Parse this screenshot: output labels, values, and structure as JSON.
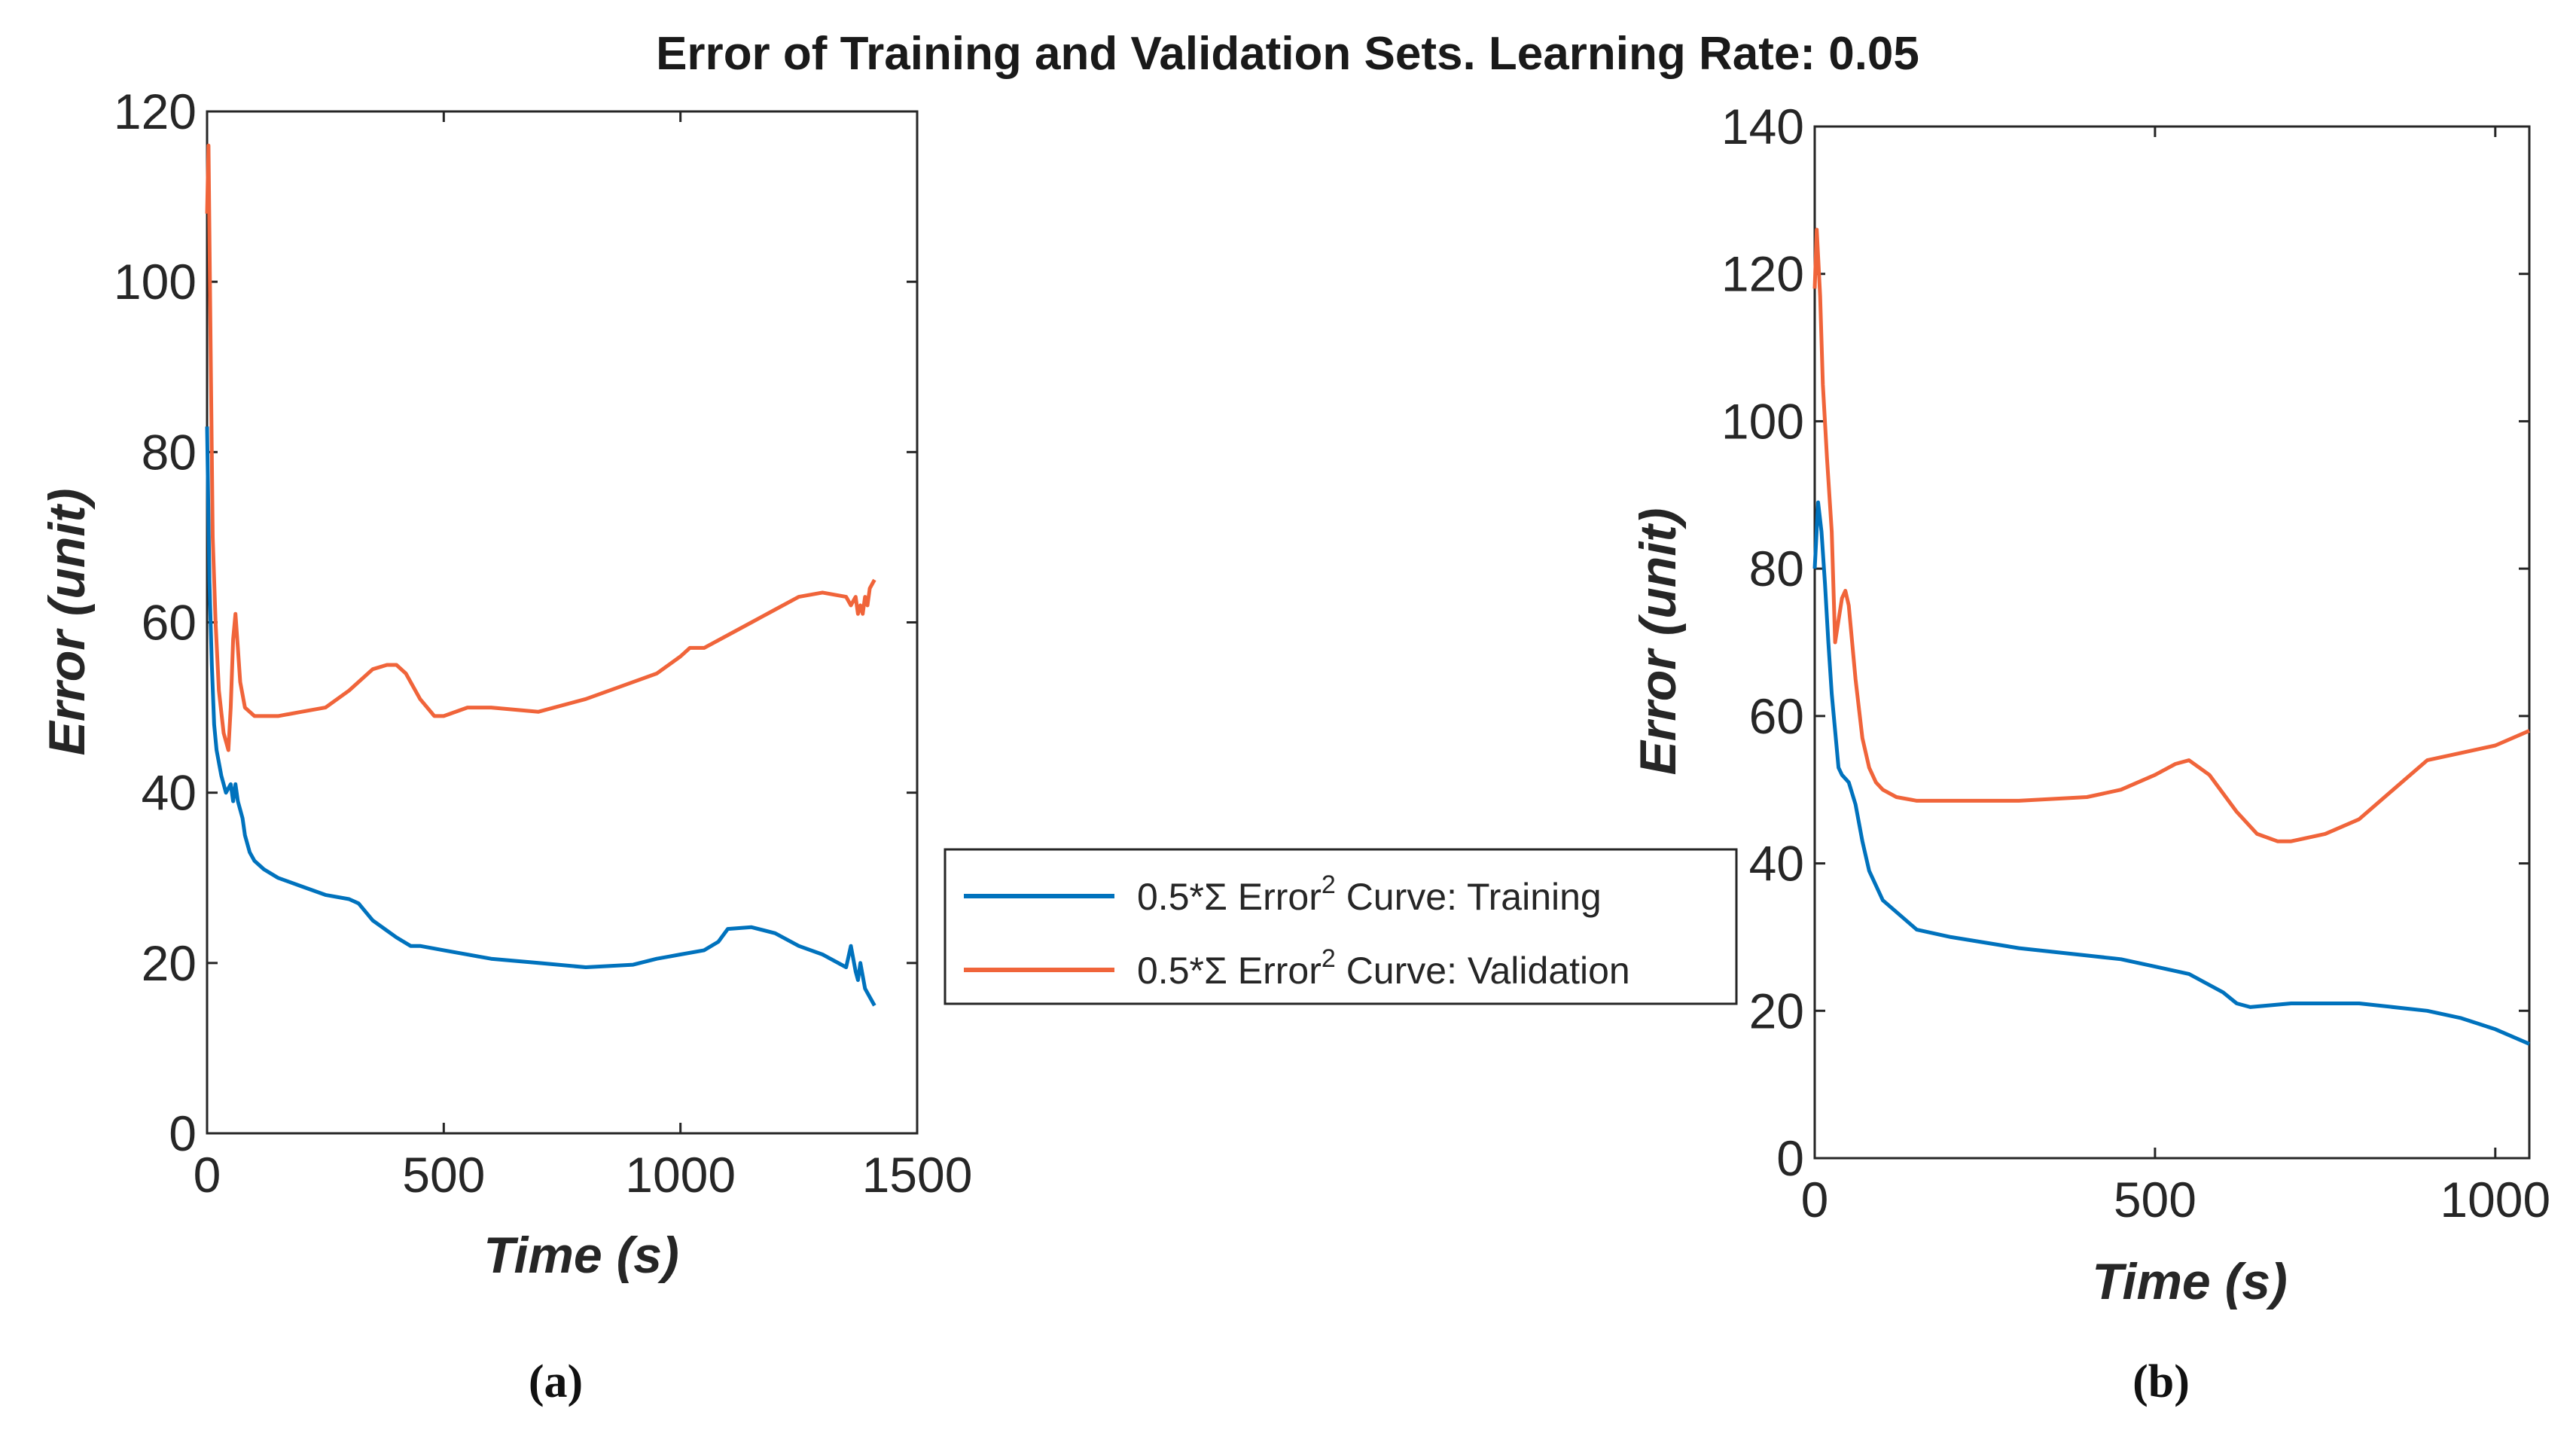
{
  "title": "Error of Training and Validation Sets. Learning Rate: 0.05",
  "colors": {
    "training": "#0072BD",
    "validation": "#F0643A",
    "axis": "#262626"
  },
  "legend": {
    "entries": [
      {
        "prefix": "0.5*Σ Error",
        "sup": "2",
        "suffix": " Curve: Training",
        "series": "training"
      },
      {
        "prefix": "0.5*Σ Error",
        "sup": "2",
        "suffix": " Curve: Validation",
        "series": "validation"
      }
    ]
  },
  "chart_data": [
    {
      "type": "line",
      "caption": "(a)",
      "xlabel": "Time (s)",
      "ylabel": "Error (unit)",
      "xlim": [
        0,
        1500
      ],
      "ylim": [
        0,
        120
      ],
      "xticks": [
        0,
        500,
        1000,
        1500
      ],
      "yticks": [
        0,
        20,
        40,
        60,
        80,
        100,
        120
      ],
      "series": [
        {
          "name": "0.5*Σ Error2 Curve: Training",
          "color": "training",
          "x": [
            0,
            5,
            10,
            15,
            20,
            30,
            40,
            50,
            55,
            60,
            65,
            70,
            75,
            80,
            90,
            100,
            120,
            150,
            200,
            250,
            300,
            320,
            350,
            400,
            430,
            450,
            500,
            600,
            700,
            800,
            900,
            950,
            1000,
            1050,
            1080,
            1100,
            1150,
            1200,
            1250,
            1300,
            1350,
            1360,
            1370,
            1375,
            1380,
            1385,
            1390,
            1400,
            1410
          ],
          "values": [
            83,
            65,
            55,
            48,
            45,
            42,
            40,
            41,
            39,
            41,
            39,
            38,
            37,
            35,
            33,
            32,
            31,
            30,
            29,
            28,
            27.5,
            27,
            25,
            23,
            22,
            22,
            21.5,
            20.5,
            20,
            19.5,
            19.8,
            20.5,
            21,
            21.5,
            22.5,
            24,
            24.2,
            23.5,
            22,
            21,
            19.5,
            22,
            19,
            18,
            20,
            18.5,
            17,
            16,
            15
          ]
        },
        {
          "name": "0.5*Σ Error2 Curve: Validation",
          "color": "validation",
          "x": [
            0,
            3,
            8,
            12,
            18,
            25,
            35,
            45,
            50,
            55,
            60,
            65,
            70,
            80,
            90,
            100,
            120,
            150,
            200,
            250,
            300,
            350,
            380,
            400,
            420,
            450,
            480,
            500,
            550,
            600,
            700,
            800,
            900,
            950,
            1000,
            1020,
            1050,
            1100,
            1150,
            1200,
            1250,
            1300,
            1350,
            1360,
            1370,
            1375,
            1380,
            1385,
            1390,
            1395,
            1400,
            1410
          ],
          "values": [
            108,
            116,
            90,
            70,
            60,
            52,
            47,
            45,
            50,
            58,
            61,
            57,
            53,
            50,
            49.5,
            49,
            49,
            49,
            49.5,
            50,
            52,
            54.5,
            55,
            55,
            54,
            51,
            49,
            49,
            50,
            50,
            49.5,
            51,
            53,
            54,
            56,
            57,
            57,
            58.5,
            60,
            61.5,
            63,
            63.5,
            63,
            62,
            63,
            61,
            62,
            61,
            63,
            62,
            64,
            65
          ]
        }
      ]
    },
    {
      "type": "line",
      "caption": "(b)",
      "xlabel": "Time (s)",
      "ylabel": "Error (unit)",
      "xlim": [
        0,
        1050
      ],
      "ylim": [
        0,
        140
      ],
      "xticks": [
        0,
        500,
        1000
      ],
      "yticks": [
        0,
        20,
        40,
        60,
        80,
        100,
        120,
        140
      ],
      "series": [
        {
          "name": "0.5*Σ Error2 Curve: Training",
          "color": "training",
          "x": [
            0,
            5,
            10,
            15,
            20,
            25,
            30,
            35,
            40,
            50,
            60,
            70,
            80,
            100,
            150,
            200,
            300,
            400,
            450,
            500,
            550,
            600,
            620,
            640,
            700,
            800,
            900,
            950,
            1000,
            1050
          ],
          "values": [
            80,
            89,
            85,
            78,
            70,
            63,
            58,
            53,
            52,
            51,
            48,
            43,
            39,
            35,
            31,
            30,
            28.5,
            27.5,
            27,
            26,
            25,
            22.5,
            21,
            20.5,
            21,
            21,
            20,
            19,
            17.5,
            15.5
          ]
        },
        {
          "name": "0.5*Σ Error2 Curve: Validation",
          "color": "validation",
          "x": [
            0,
            3,
            8,
            12,
            18,
            25,
            30,
            35,
            40,
            45,
            50,
            55,
            60,
            70,
            80,
            90,
            100,
            120,
            150,
            200,
            300,
            400,
            450,
            500,
            530,
            550,
            580,
            620,
            650,
            680,
            700,
            750,
            800,
            850,
            900,
            950,
            1000,
            1050
          ],
          "values": [
            118,
            126,
            117,
            105,
            95,
            85,
            70,
            73,
            76,
            77,
            75,
            70,
            65,
            57,
            53,
            51,
            50,
            49,
            48.5,
            48.5,
            48.5,
            49,
            50,
            52,
            53.5,
            54,
            52,
            47,
            44,
            43,
            43,
            44,
            46,
            50,
            54,
            55,
            56,
            58
          ]
        }
      ]
    }
  ]
}
